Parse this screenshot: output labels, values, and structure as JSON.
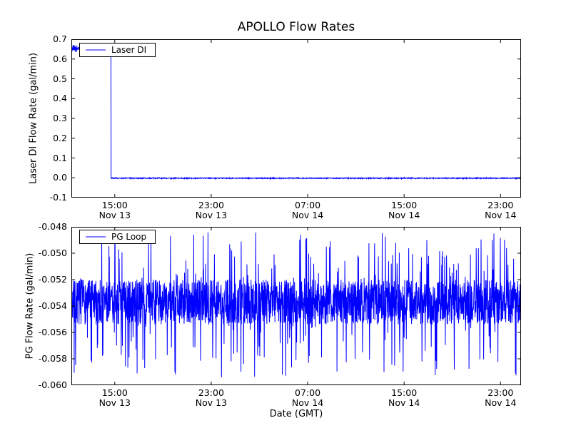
{
  "figure": {
    "title": "APOLLO Flow Rates",
    "colors": {
      "line": "#0000ff",
      "axis": "#000000",
      "background": "#ffffff"
    }
  },
  "chart_data": [
    {
      "id": "laser-di",
      "type": "line",
      "title": "APOLLO Flow Rates",
      "ylabel": "Laser DI Flow Rate (gal/min)",
      "xlabel": "",
      "ylim": [
        -0.1,
        0.7
      ],
      "xlim_hours": [
        0,
        37.3
      ],
      "grid": false,
      "legend": {
        "position": "upper left",
        "entries": [
          "Laser DI"
        ]
      },
      "yticks": [
        {
          "value": 0.7,
          "label": "0.7"
        },
        {
          "value": 0.6,
          "label": "0.6"
        },
        {
          "value": 0.5,
          "label": "0.5"
        },
        {
          "value": 0.4,
          "label": "0.4"
        },
        {
          "value": 0.3,
          "label": "0.3"
        },
        {
          "value": 0.2,
          "label": "0.2"
        },
        {
          "value": 0.1,
          "label": "0.1"
        },
        {
          "value": 0.0,
          "label": "0.0"
        },
        {
          "value": -0.1,
          "label": "-0.1"
        }
      ],
      "xticks": [
        {
          "hour": 3.6,
          "time": "15:00",
          "date": "Nov 13"
        },
        {
          "hour": 11.6,
          "time": "23:00",
          "date": "Nov 13"
        },
        {
          "hour": 19.6,
          "time": "07:00",
          "date": "Nov 14"
        },
        {
          "hour": 27.6,
          "time": "15:00",
          "date": "Nov 14"
        },
        {
          "hour": 35.6,
          "time": "23:00",
          "date": "Nov 14"
        }
      ],
      "series": [
        {
          "name": "Laser DI",
          "color": "#0000ff",
          "model": "step",
          "initial_value": 0.655,
          "initial_noise": 0.007,
          "burst_duration_hours": 0.45,
          "burst_noise": 0.02,
          "drop_hour": 3.3,
          "final_value": -0.002,
          "final_noise": 0.0025,
          "dip_probability": 0.012,
          "dip_depth": 0.006,
          "points_per_hour": 50,
          "seed": 42
        }
      ]
    },
    {
      "id": "pg-loop",
      "type": "line",
      "title": "",
      "ylabel": "PG Flow Rate (gal/min)",
      "xlabel": "Date (GMT)",
      "ylim": [
        -0.06,
        -0.048
      ],
      "xlim_hours": [
        0,
        37.3
      ],
      "grid": false,
      "legend": {
        "position": "upper left",
        "entries": [
          "PG Loop"
        ]
      },
      "yticks": [
        {
          "value": -0.048,
          "label": "-0.048"
        },
        {
          "value": -0.05,
          "label": "-0.050"
        },
        {
          "value": -0.052,
          "label": "-0.052"
        },
        {
          "value": -0.054,
          "label": "-0.054"
        },
        {
          "value": -0.056,
          "label": "-0.056"
        },
        {
          "value": -0.058,
          "label": "-0.058"
        },
        {
          "value": -0.06,
          "label": "-0.060"
        }
      ],
      "xticks": [
        {
          "hour": 3.6,
          "time": "15:00",
          "date": "Nov 13"
        },
        {
          "hour": 11.6,
          "time": "23:00",
          "date": "Nov 13"
        },
        {
          "hour": 19.6,
          "time": "07:00",
          "date": "Nov 14"
        },
        {
          "hour": 27.6,
          "time": "15:00",
          "date": "Nov 14"
        },
        {
          "hour": 35.6,
          "time": "23:00",
          "date": "Nov 14"
        }
      ],
      "series": [
        {
          "name": "PG Loop",
          "color": "#0000ff",
          "model": "noise-band",
          "mean": -0.0537,
          "band_half_width": 0.0017,
          "spike_up_max": -0.0484,
          "spike_down_min": -0.0594,
          "spike_up_prob": 0.045,
          "spike_down_prob": 0.05,
          "points_per_hour": 60,
          "seed": 7
        }
      ]
    }
  ]
}
